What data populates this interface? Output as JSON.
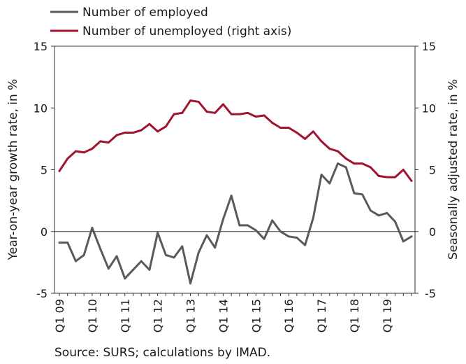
{
  "chart_data": {
    "type": "line",
    "x": [
      "Q1 09",
      "Q2 09",
      "Q3 09",
      "Q4 09",
      "Q1 10",
      "Q2 10",
      "Q3 10",
      "Q4 10",
      "Q1 11",
      "Q2 11",
      "Q3 11",
      "Q4 11",
      "Q1 12",
      "Q2 12",
      "Q3 12",
      "Q4 12",
      "Q1 13",
      "Q2 13",
      "Q3 13",
      "Q4 13",
      "Q1 14",
      "Q2 14",
      "Q3 14",
      "Q4 14",
      "Q1 15",
      "Q2 15",
      "Q3 15",
      "Q4 15",
      "Q1 16",
      "Q2 16",
      "Q3 16",
      "Q4 16",
      "Q1 17",
      "Q2 17",
      "Q3 17",
      "Q4 17",
      "Q1 18",
      "Q2 18",
      "Q3 18",
      "Q4 18",
      "Q1 19",
      "Q2 19",
      "Q3 19",
      "Q4 19"
    ],
    "x_tick_labels": [
      "Q1 09",
      "Q1 10",
      "Q1 11",
      "Q1 12",
      "Q1 13",
      "Q1 14",
      "Q1 15",
      "Q1 16",
      "Q1 17",
      "Q1 18",
      "Q1 19"
    ],
    "series": [
      {
        "name": "Number of employed",
        "axis": "left",
        "color": "#5a5a5a",
        "values": [
          -0.9,
          -0.9,
          -2.4,
          -1.9,
          0.3,
          -1.4,
          -3.0,
          -2.0,
          -3.8,
          -3.1,
          -2.4,
          -3.1,
          -0.1,
          -1.9,
          -2.1,
          -1.2,
          -4.2,
          -1.7,
          -0.3,
          -1.3,
          1.0,
          2.9,
          0.5,
          0.5,
          0.1,
          -0.6,
          0.9,
          0.0,
          -0.4,
          -0.5,
          -1.1,
          1.1,
          4.6,
          3.9,
          5.5,
          5.2,
          3.1,
          3.0,
          1.7,
          1.3,
          1.5,
          0.8,
          -0.8,
          -0.4
        ]
      },
      {
        "name": "Number of unemployed (right axis)",
        "axis": "right",
        "color": "#a0142d",
        "values": [
          4.9,
          5.9,
          6.5,
          6.4,
          6.7,
          7.3,
          7.2,
          7.8,
          8.0,
          8.0,
          8.2,
          8.7,
          8.1,
          8.5,
          9.5,
          9.6,
          10.6,
          10.5,
          9.7,
          9.6,
          10.3,
          9.5,
          9.5,
          9.6,
          9.3,
          9.4,
          8.8,
          8.4,
          8.4,
          8.0,
          7.5,
          8.1,
          7.3,
          6.7,
          6.5,
          5.9,
          5.5,
          5.5,
          5.2,
          4.5,
          4.4,
          4.4,
          5.0,
          4.1
        ]
      }
    ],
    "ylabel": "Year-on-year growth rate, in %",
    "y2label": "Seasonally adjusted rate, in %",
    "ylim": [
      -5,
      15
    ],
    "y2lim": [
      -5,
      15
    ],
    "yticks": [
      "-5",
      "0",
      "5",
      "10",
      "15"
    ],
    "y2ticks": [
      "-5",
      "0",
      "5",
      "10",
      "15"
    ],
    "legend": "top-left",
    "grid": false
  },
  "source": "Source: SURS; calculations by IMAD."
}
